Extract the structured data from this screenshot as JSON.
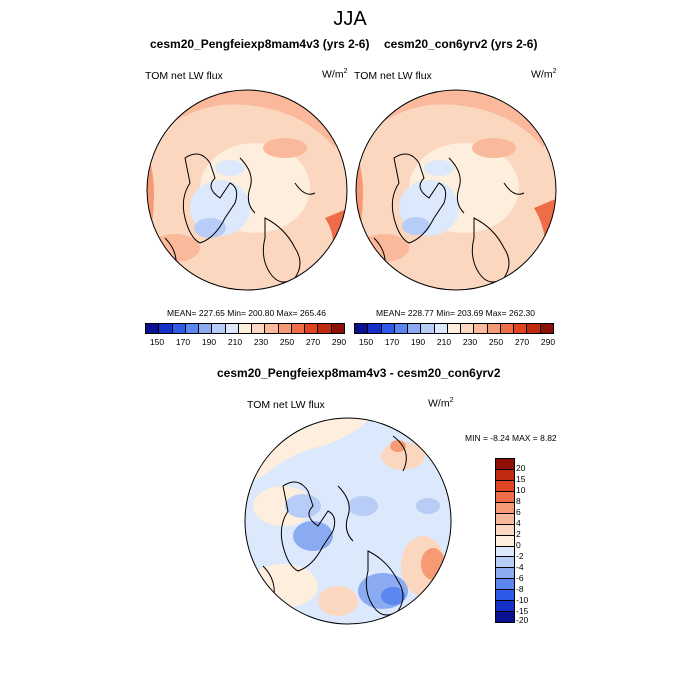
{
  "figure": {
    "title": "JJA"
  },
  "panels": [
    {
      "title": "cesm20_Pengfeiexp8mam4v3 (yrs 2-6)",
      "variable": "TOM net LW flux",
      "units_base": "W/m",
      "units_exp": "2",
      "stats": "MEAN= 227.65  Min= 200.80  Max= 265.46"
    },
    {
      "title": "cesm20_con6yrv2 (yrs 2-6)",
      "variable": "TOM net LW flux",
      "units_base": "W/m",
      "units_exp": "2",
      "stats": "MEAN= 228.77  Min= 203.69  Max= 262.30"
    }
  ],
  "diff_panel": {
    "title": "cesm20_Pengfeiexp8mam4v3 - cesm20_con6yrv2",
    "variable": "TOM net LW flux",
    "units_base": "W/m",
    "units_exp": "2",
    "minmax": "MIN =  -8.24 MAX =   8.82"
  },
  "colorbar_abs": {
    "colors": [
      "#0a1190",
      "#1530c8",
      "#2f5ae8",
      "#5b86f0",
      "#8aaaf2",
      "#b7cdf7",
      "#dce8fb",
      "#fdeede",
      "#fcd7c0",
      "#f9b99a",
      "#f59a74",
      "#ef6c48",
      "#e04420",
      "#c02a0e",
      "#8c1006"
    ],
    "ticks": [
      "150",
      "170",
      "190",
      "210",
      "230",
      "250",
      "270",
      "290"
    ]
  },
  "colorbar_diff": {
    "colors": [
      "#8c1006",
      "#c02a0e",
      "#e04420",
      "#ef6c48",
      "#f59a74",
      "#f9b99a",
      "#fcd7c0",
      "#fdeede",
      "#dce8fb",
      "#b7cdf7",
      "#8aaaf2",
      "#5b86f0",
      "#2f5ae8",
      "#1530c8",
      "#0a1190"
    ],
    "ticks": [
      "20",
      "15",
      "10",
      "8",
      "6",
      "4",
      "2",
      "0",
      "-2",
      "-4",
      "-6",
      "-8",
      "-10",
      "-15",
      "-20"
    ]
  }
}
